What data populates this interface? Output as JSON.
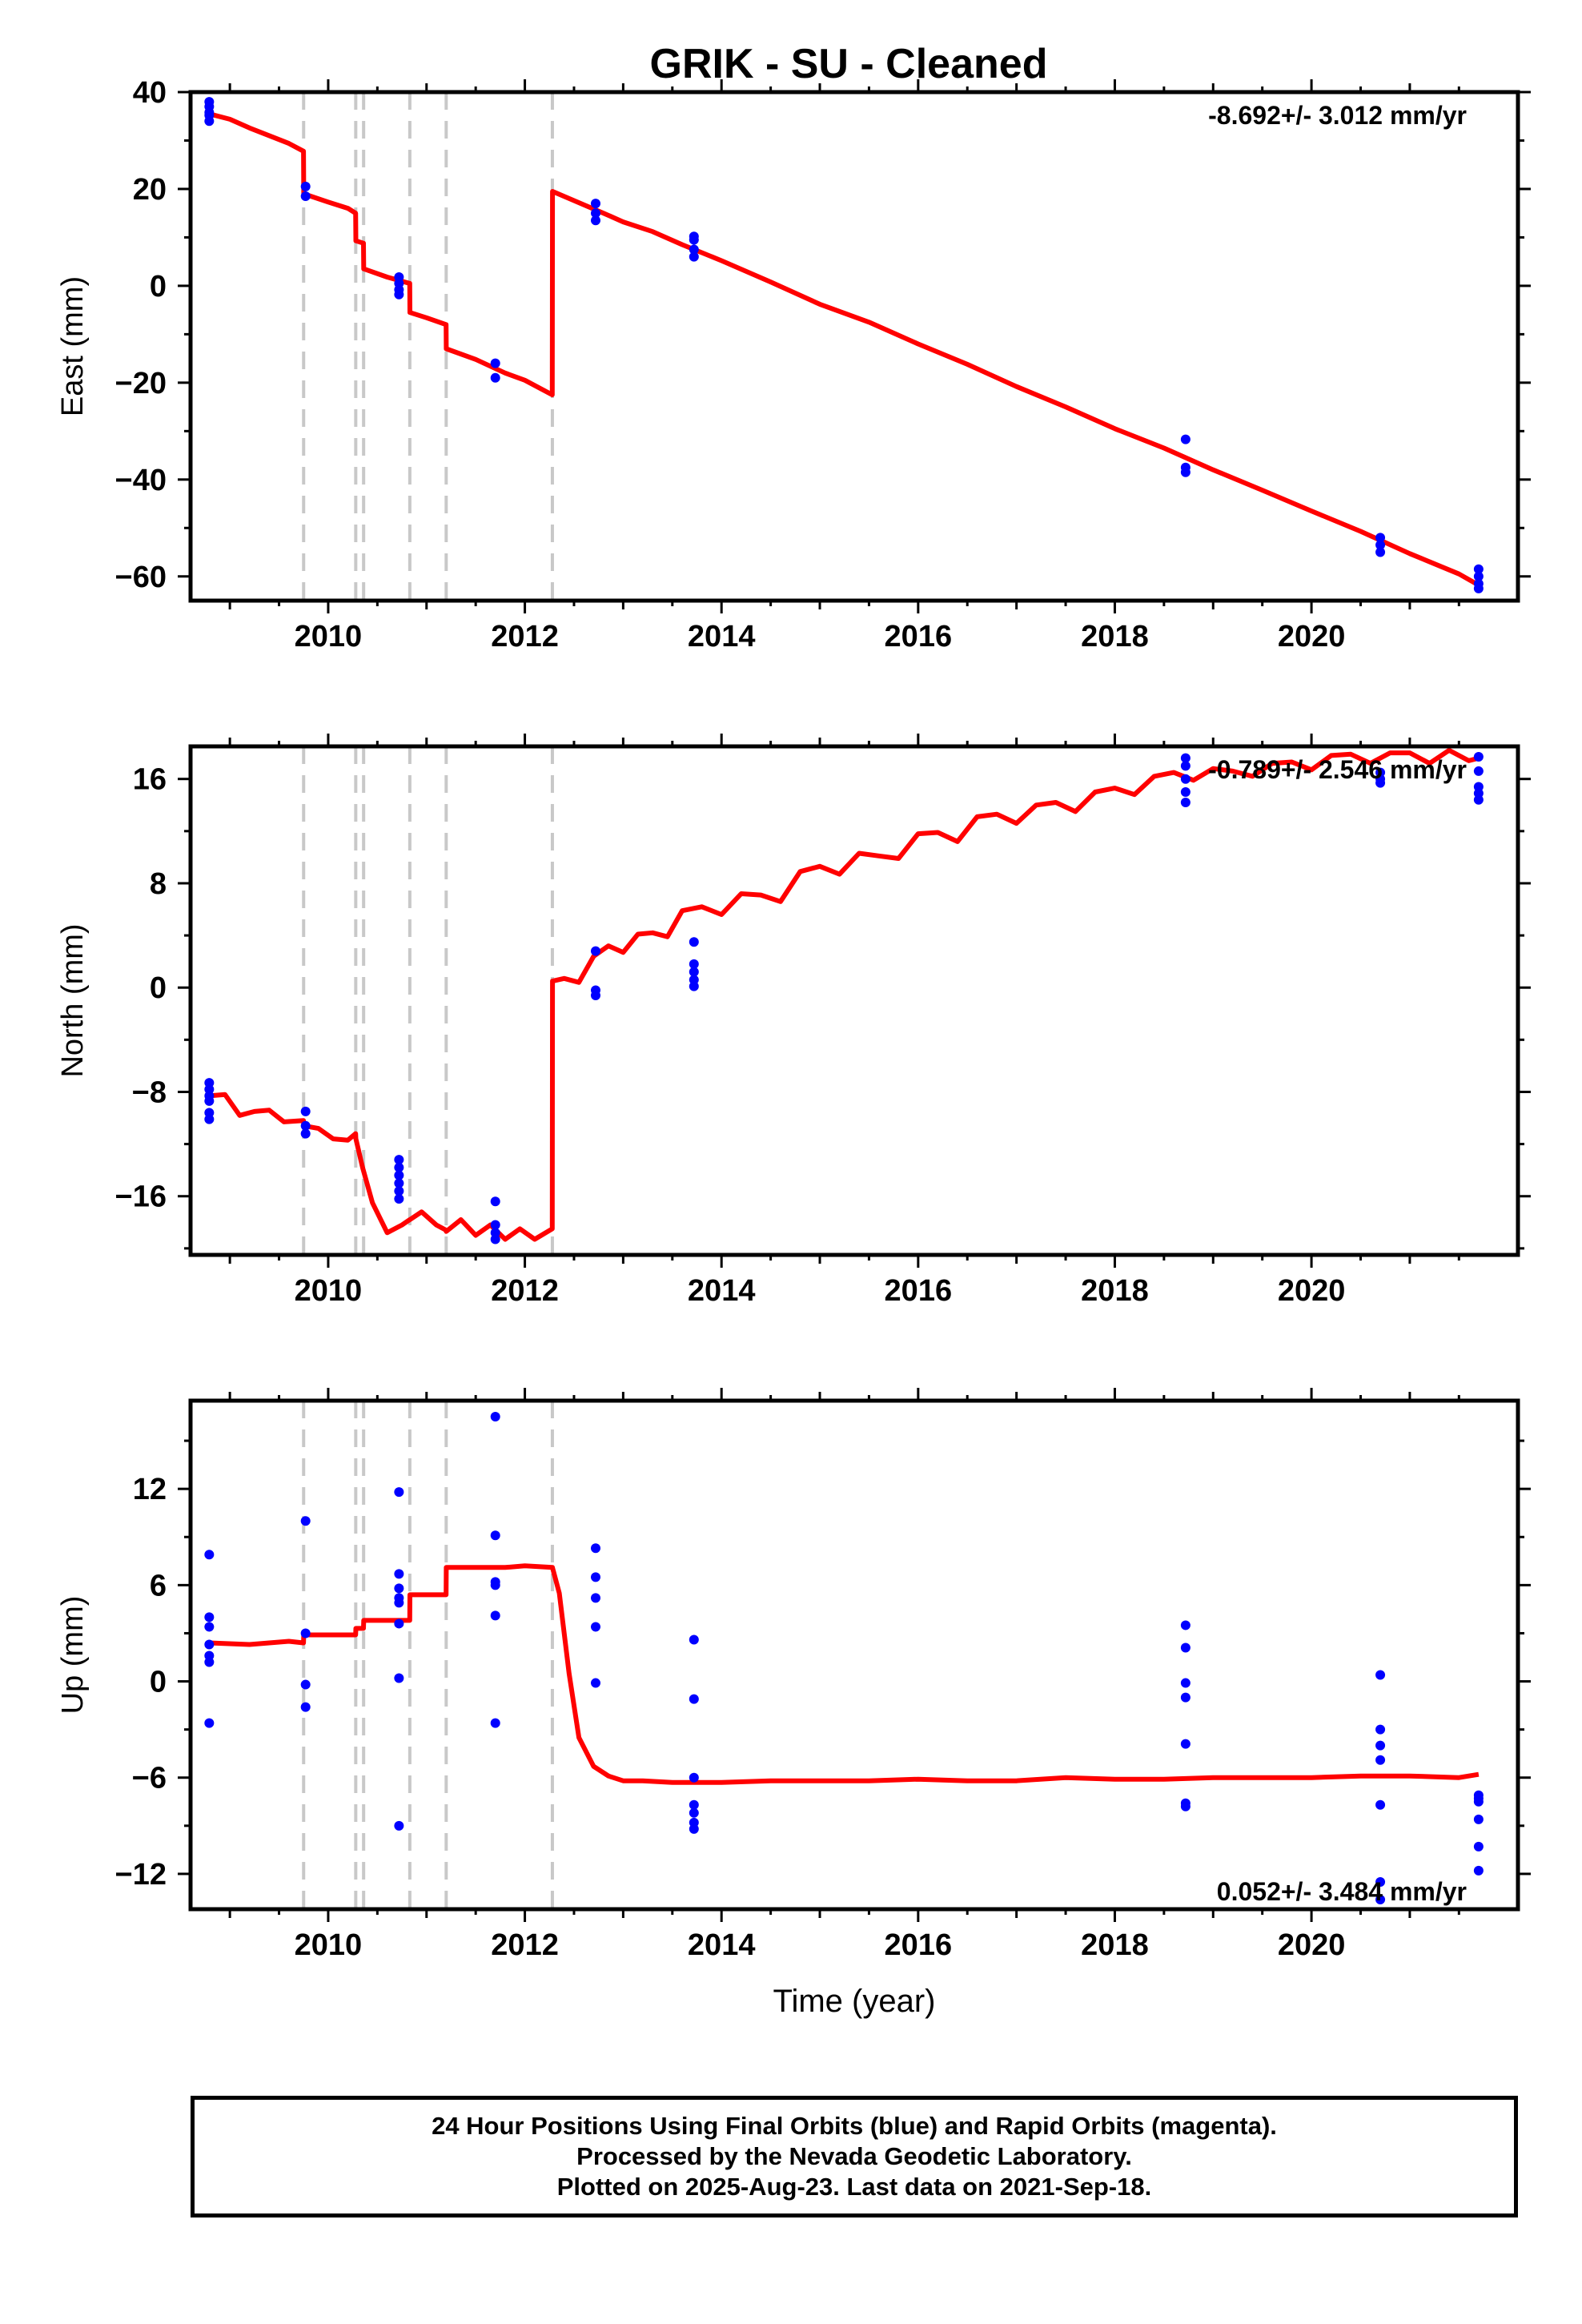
{
  "title": "GRIK  - SU - Cleaned",
  "x_axis_label": "Time (year)",
  "footer": {
    "line1": "24 Hour Positions Using Final Orbits (blue) and Rapid Orbits (magenta).",
    "line2": "Processed by the Nevada Geodetic Laboratory.",
    "line3": "Plotted on 2025-Aug-23. Last data on 2021-Sep-18."
  },
  "colors": {
    "model": "#ff0000",
    "final_orbits": "#0000ff",
    "breaks": "#c8c8c8",
    "frame": "#000000"
  },
  "chart_data": [
    {
      "type": "scatter",
      "panel": "east",
      "ylabel": "East (mm)",
      "rate_label": "-8.692+/- 3.012 mm/yr",
      "rate_position": "top-right",
      "xlim": [
        2008.6,
        2022.1
      ],
      "ylim": [
        -65,
        40
      ],
      "xticks": [
        2010,
        2012,
        2014,
        2016,
        2018,
        2020
      ],
      "xticklabels": [
        "2010",
        "2012",
        "2014",
        "2016",
        "2018",
        "2020"
      ],
      "yticks": [
        -60,
        -40,
        -20,
        0,
        20,
        40
      ],
      "yticklabels": [
        "−60",
        "−40",
        "−20",
        "0",
        "20",
        "40"
      ],
      "breaks": [
        2009.75,
        2010.28,
        2010.36,
        2010.83,
        2011.2,
        2012.28
      ],
      "final_orbits": {
        "x": [
          2008.79,
          2008.79,
          2008.79,
          2008.79,
          2008.79,
          2009.77,
          2009.77,
          2010.72,
          2010.72,
          2010.72,
          2010.72,
          2011.7,
          2011.7,
          2012.72,
          2012.72,
          2012.72,
          2013.72,
          2013.72,
          2013.72,
          2013.72,
          2018.72,
          2018.72,
          2018.72,
          2020.7,
          2020.7,
          2020.7,
          2021.7,
          2021.7,
          2021.7,
          2021.7
        ],
        "y": [
          38,
          37,
          35.8,
          35.2,
          34,
          20.5,
          18.5,
          1.8,
          0.5,
          -0.8,
          -1.8,
          -16,
          -19,
          17,
          15,
          13.5,
          10.2,
          9.5,
          7.5,
          6,
          -31.7,
          -37.5,
          -38.5,
          -52,
          -53.5,
          -55,
          -58.5,
          -60,
          -61.5,
          -62.5
        ]
      },
      "model": {
        "x": [
          2008.79,
          2009.0,
          2009.2,
          2009.4,
          2009.6,
          2009.749,
          2009.751,
          2010.0,
          2010.2,
          2010.279,
          2010.281,
          2010.359,
          2010.361,
          2010.6,
          2010.829,
          2010.831,
          2011.0,
          2011.199,
          2011.201,
          2011.5,
          2011.8,
          2012.0,
          2012.279,
          2012.281,
          2012.5,
          2012.8,
          2013.0,
          2013.3,
          2013.6,
          2014.0,
          2014.5,
          2015.0,
          2015.5,
          2016.0,
          2016.5,
          2017.0,
          2017.5,
          2018.0,
          2018.5,
          2019.0,
          2019.5,
          2020.0,
          2020.5,
          2021.0,
          2021.5,
          2021.7
        ],
        "y": [
          35.5,
          34.4,
          32.6,
          31,
          29.4,
          27.8,
          19,
          17.3,
          16,
          15,
          9.3,
          8.8,
          3.5,
          1.8,
          0.5,
          -5.5,
          -6.6,
          -8,
          -13,
          -15.2,
          -18,
          -19.5,
          -22.5,
          19.5,
          17.6,
          15,
          13.2,
          11.2,
          8.5,
          5.2,
          0.8,
          -3.8,
          -7.5,
          -12,
          -16.2,
          -20.8,
          -25,
          -29.5,
          -33.5,
          -38,
          -42.2,
          -46.5,
          -50.7,
          -55.3,
          -59.5,
          -61.8
        ]
      }
    },
    {
      "type": "scatter",
      "panel": "north",
      "ylabel": "North (mm)",
      "rate_label": "-0.789+/- 2.546 mm/yr",
      "rate_position": "top-right",
      "xlim": [
        2008.6,
        2022.1
      ],
      "ylim": [
        -20.5,
        18.5
      ],
      "xticks": [
        2010,
        2012,
        2014,
        2016,
        2018,
        2020
      ],
      "xticklabels": [
        "2010",
        "2012",
        "2014",
        "2016",
        "2018",
        "2020"
      ],
      "yticks": [
        -16,
        -8,
        0,
        8,
        16
      ],
      "yticklabels": [
        "−16",
        "−8",
        "0",
        "8",
        "16"
      ],
      "breaks": [
        2009.75,
        2010.28,
        2010.36,
        2010.83,
        2011.2,
        2012.28
      ],
      "final_orbits": {
        "x": [
          2008.79,
          2008.79,
          2008.79,
          2008.79,
          2008.79,
          2008.79,
          2009.77,
          2009.77,
          2009.77,
          2010.72,
          2010.72,
          2010.72,
          2010.72,
          2010.72,
          2010.72,
          2011.7,
          2011.7,
          2011.7,
          2011.7,
          2012.72,
          2012.72,
          2012.72,
          2013.72,
          2013.72,
          2013.72,
          2013.72,
          2013.72,
          2018.72,
          2018.72,
          2018.72,
          2018.72,
          2018.72,
          2020.7,
          2020.7,
          2020.7,
          2021.7,
          2021.7,
          2021.7,
          2021.7,
          2021.7
        ],
        "y": [
          -7.3,
          -7.8,
          -8.3,
          -8.7,
          -9.6,
          -10.1,
          -9.5,
          -10.6,
          -11.2,
          -13.2,
          -13.8,
          -14.4,
          -15,
          -15.6,
          -16.2,
          -16.4,
          -18.2,
          -18.8,
          -19.3,
          2.8,
          -0.2,
          -0.6,
          3.5,
          1.8,
          1.2,
          0.6,
          0.1,
          17.6,
          17,
          16,
          15,
          14.2,
          16.5,
          16,
          15.7,
          17.7,
          16.6,
          15.4,
          14.9,
          14.4
        ]
      },
      "model": {
        "x": [
          2008.79,
          2008.95,
          2009.1,
          2009.25,
          2009.4,
          2009.55,
          2009.749,
          2009.751,
          2009.9,
          2010.05,
          2010.2,
          2010.279,
          2010.281,
          2010.35,
          2010.45,
          2010.6,
          2010.75,
          2010.829,
          2010.831,
          2010.95,
          2011.1,
          2011.199,
          2011.201,
          2011.35,
          2011.5,
          2011.65,
          2011.8,
          2011.95,
          2012.1,
          2012.279,
          2012.281,
          2012.4,
          2012.55,
          2012.7,
          2012.85,
          2013.0,
          2013.15,
          2013.3,
          2013.45,
          2013.6,
          2013.8,
          2014.0,
          2014.2,
          2014.4,
          2014.6,
          2014.8,
          2015.0,
          2015.2,
          2015.4,
          2015.6,
          2015.8,
          2016.0,
          2016.2,
          2016.4,
          2016.6,
          2016.8,
          2017.0,
          2017.2,
          2017.4,
          2017.6,
          2017.8,
          2018.0,
          2018.2,
          2018.4,
          2018.6,
          2018.8,
          2019.0,
          2019.2,
          2019.4,
          2019.6,
          2019.8,
          2020.0,
          2020.2,
          2020.4,
          2020.6,
          2020.8,
          2021.0,
          2021.2,
          2021.4,
          2021.6,
          2021.7
        ],
        "y": [
          -8.3,
          -8.2,
          -9.8,
          -9.5,
          -9.4,
          -10.3,
          -10.2,
          -10.6,
          -10.8,
          -11.6,
          -11.7,
          -11.2,
          -11.6,
          -13.8,
          -16.5,
          -18.8,
          -18.2,
          -17.8,
          -17.8,
          -17.2,
          -18.2,
          -18.6,
          -18.7,
          -17.8,
          -19,
          -18.2,
          -19.3,
          -18.5,
          -19.3,
          -18.5,
          0.5,
          0.7,
          0.4,
          2.4,
          3.2,
          2.7,
          4.1,
          4.2,
          3.9,
          5.9,
          6.2,
          5.6,
          7.2,
          7.1,
          6.6,
          8.9,
          9.3,
          8.7,
          10.3,
          10.1,
          9.9,
          11.8,
          11.9,
          11.2,
          13.1,
          13.3,
          12.6,
          14,
          14.2,
          13.5,
          15,
          15.3,
          14.8,
          16.2,
          16.5,
          15.9,
          16.8,
          16.6,
          16.2,
          17.2,
          17.3,
          16.7,
          17.8,
          17.9,
          17.2,
          18,
          18,
          17.2,
          18.2,
          17.4,
          17.6
        ]
      }
    },
    {
      "type": "scatter",
      "panel": "up",
      "ylabel": "Up (mm)",
      "rate_label": "0.052+/- 3.484 mm/yr",
      "rate_position": "bottom-right",
      "xlabel": "Time (year)",
      "xlim": [
        2008.6,
        2022.1
      ],
      "ylim": [
        -14.2,
        17.5
      ],
      "xticks": [
        2010,
        2012,
        2014,
        2016,
        2018,
        2020
      ],
      "xticklabels": [
        "2010",
        "2012",
        "2014",
        "2016",
        "2018",
        "2020"
      ],
      "yticks": [
        -12,
        -6,
        0,
        6,
        12
      ],
      "yticklabels": [
        "−12",
        "−6",
        "0",
        "6",
        "12"
      ],
      "breaks": [
        2009.75,
        2010.28,
        2010.36,
        2010.83,
        2011.2,
        2012.28
      ],
      "final_orbits": {
        "x": [
          2008.79,
          2008.79,
          2008.79,
          2008.79,
          2008.79,
          2008.79,
          2008.79,
          2009.77,
          2009.77,
          2009.77,
          2009.77,
          2010.72,
          2010.72,
          2010.72,
          2010.72,
          2010.72,
          2010.72,
          2010.72,
          2010.72,
          2011.7,
          2011.7,
          2011.7,
          2011.7,
          2011.7,
          2011.7,
          2012.72,
          2012.72,
          2012.72,
          2012.72,
          2012.72,
          2013.72,
          2013.72,
          2013.72,
          2013.72,
          2013.72,
          2013.72,
          2013.72,
          2018.72,
          2018.72,
          2018.72,
          2018.72,
          2018.72,
          2018.72,
          2018.72,
          2020.7,
          2020.7,
          2020.7,
          2020.7,
          2020.7,
          2020.7,
          2020.7,
          2021.7,
          2021.7,
          2021.7,
          2021.7,
          2021.7,
          2021.7
        ],
        "y": [
          7.9,
          4,
          3.4,
          2.3,
          1.6,
          1.2,
          -2.6,
          10,
          3,
          -0.2,
          -1.6,
          11.8,
          6.7,
          5.8,
          5.2,
          4.9,
          3.6,
          0.2,
          -9,
          16.5,
          9.1,
          6.2,
          6,
          4.1,
          -2.6,
          8.3,
          6.5,
          5.2,
          3.4,
          -0.1,
          2.6,
          -1.1,
          -6,
          -7.7,
          -8.2,
          -8.8,
          -9.2,
          3.5,
          2.1,
          -0.1,
          -1,
          -3.9,
          -7.6,
          -7.8,
          0.4,
          -3,
          -4,
          -4.9,
          -7.7,
          -12.5,
          -13.6,
          -7.1,
          -7.5,
          -8.6,
          -10.3,
          -11.8,
          -7.3
        ]
      },
      "model": {
        "x": [
          2008.79,
          2009.2,
          2009.6,
          2009.749,
          2009.751,
          2010.0,
          2010.279,
          2010.281,
          2010.359,
          2010.361,
          2010.6,
          2010.829,
          2010.831,
          2011.0,
          2011.199,
          2011.201,
          2011.5,
          2011.8,
          2012.0,
          2012.28,
          2012.35,
          2012.45,
          2012.55,
          2012.7,
          2012.85,
          2013.0,
          2013.2,
          2013.5,
          2014.0,
          2014.5,
          2015.0,
          2015.5,
          2016.0,
          2016.5,
          2017.0,
          2017.5,
          2018.0,
          2018.5,
          2019.0,
          2019.5,
          2020.0,
          2020.5,
          2021.0,
          2021.5,
          2021.7
        ],
        "y": [
          2.4,
          2.3,
          2.5,
          2.4,
          2.9,
          2.9,
          2.9,
          3.3,
          3.3,
          3.8,
          3.8,
          3.8,
          5.4,
          5.4,
          5.4,
          7.1,
          7.1,
          7.1,
          7.2,
          7.1,
          5.5,
          0.5,
          -3.5,
          -5.3,
          -5.9,
          -6.2,
          -6.2,
          -6.3,
          -6.3,
          -6.2,
          -6.2,
          -6.2,
          -6.1,
          -6.2,
          -6.2,
          -6,
          -6.1,
          -6.1,
          -6,
          -6,
          -6,
          -5.9,
          -5.9,
          -6,
          -5.8
        ]
      }
    }
  ]
}
